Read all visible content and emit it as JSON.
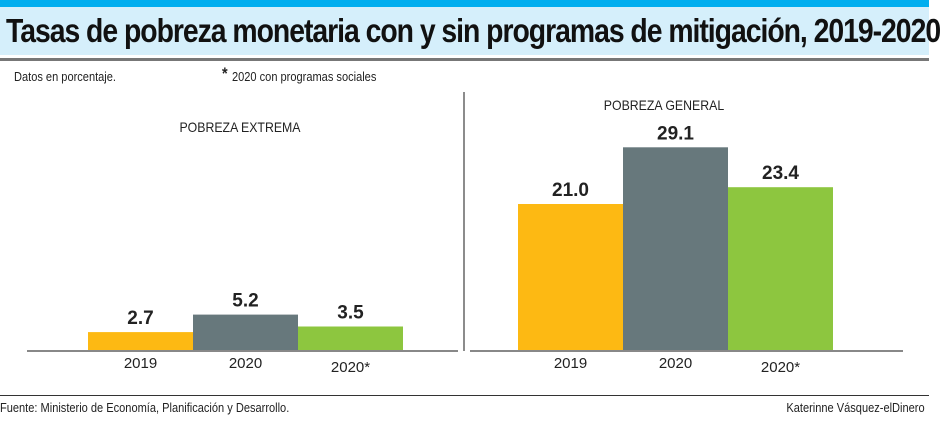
{
  "title": "Tasas de pobreza monetaria con y sin programas de mitigación, 2019-2020",
  "notes": {
    "units": "Datos en porcentaje.",
    "asterisk": "*",
    "asterisk_note": "2020 con programas sociales"
  },
  "footer": {
    "source": "Fuente: Ministerio de Economía, Planificación y Desarrollo.",
    "credit": "Katerinne Vásquez-elDinero"
  },
  "colors": {
    "accent": "#00AEEF",
    "band": "#D5EFFB",
    "c2019": "#FDB913",
    "c2020": "#67787C",
    "c2020s": "#8DC63F"
  },
  "chart_data": [
    {
      "type": "bar",
      "title": "POBREZA EXTREMA",
      "categories": [
        "2019",
        "2020",
        "2020*"
      ],
      "values": [
        2.7,
        5.2,
        3.5
      ],
      "colors": [
        "#FDB913",
        "#67787C",
        "#8DC63F"
      ],
      "ylim": [
        0,
        30
      ],
      "grid": false
    },
    {
      "type": "bar",
      "title": "POBREZA GENERAL",
      "categories": [
        "2019",
        "2020",
        "2020*"
      ],
      "values": [
        21.0,
        29.1,
        23.4
      ],
      "colors": [
        "#FDB913",
        "#67787C",
        "#8DC63F"
      ],
      "ylim": [
        0,
        30
      ],
      "grid": false
    }
  ]
}
